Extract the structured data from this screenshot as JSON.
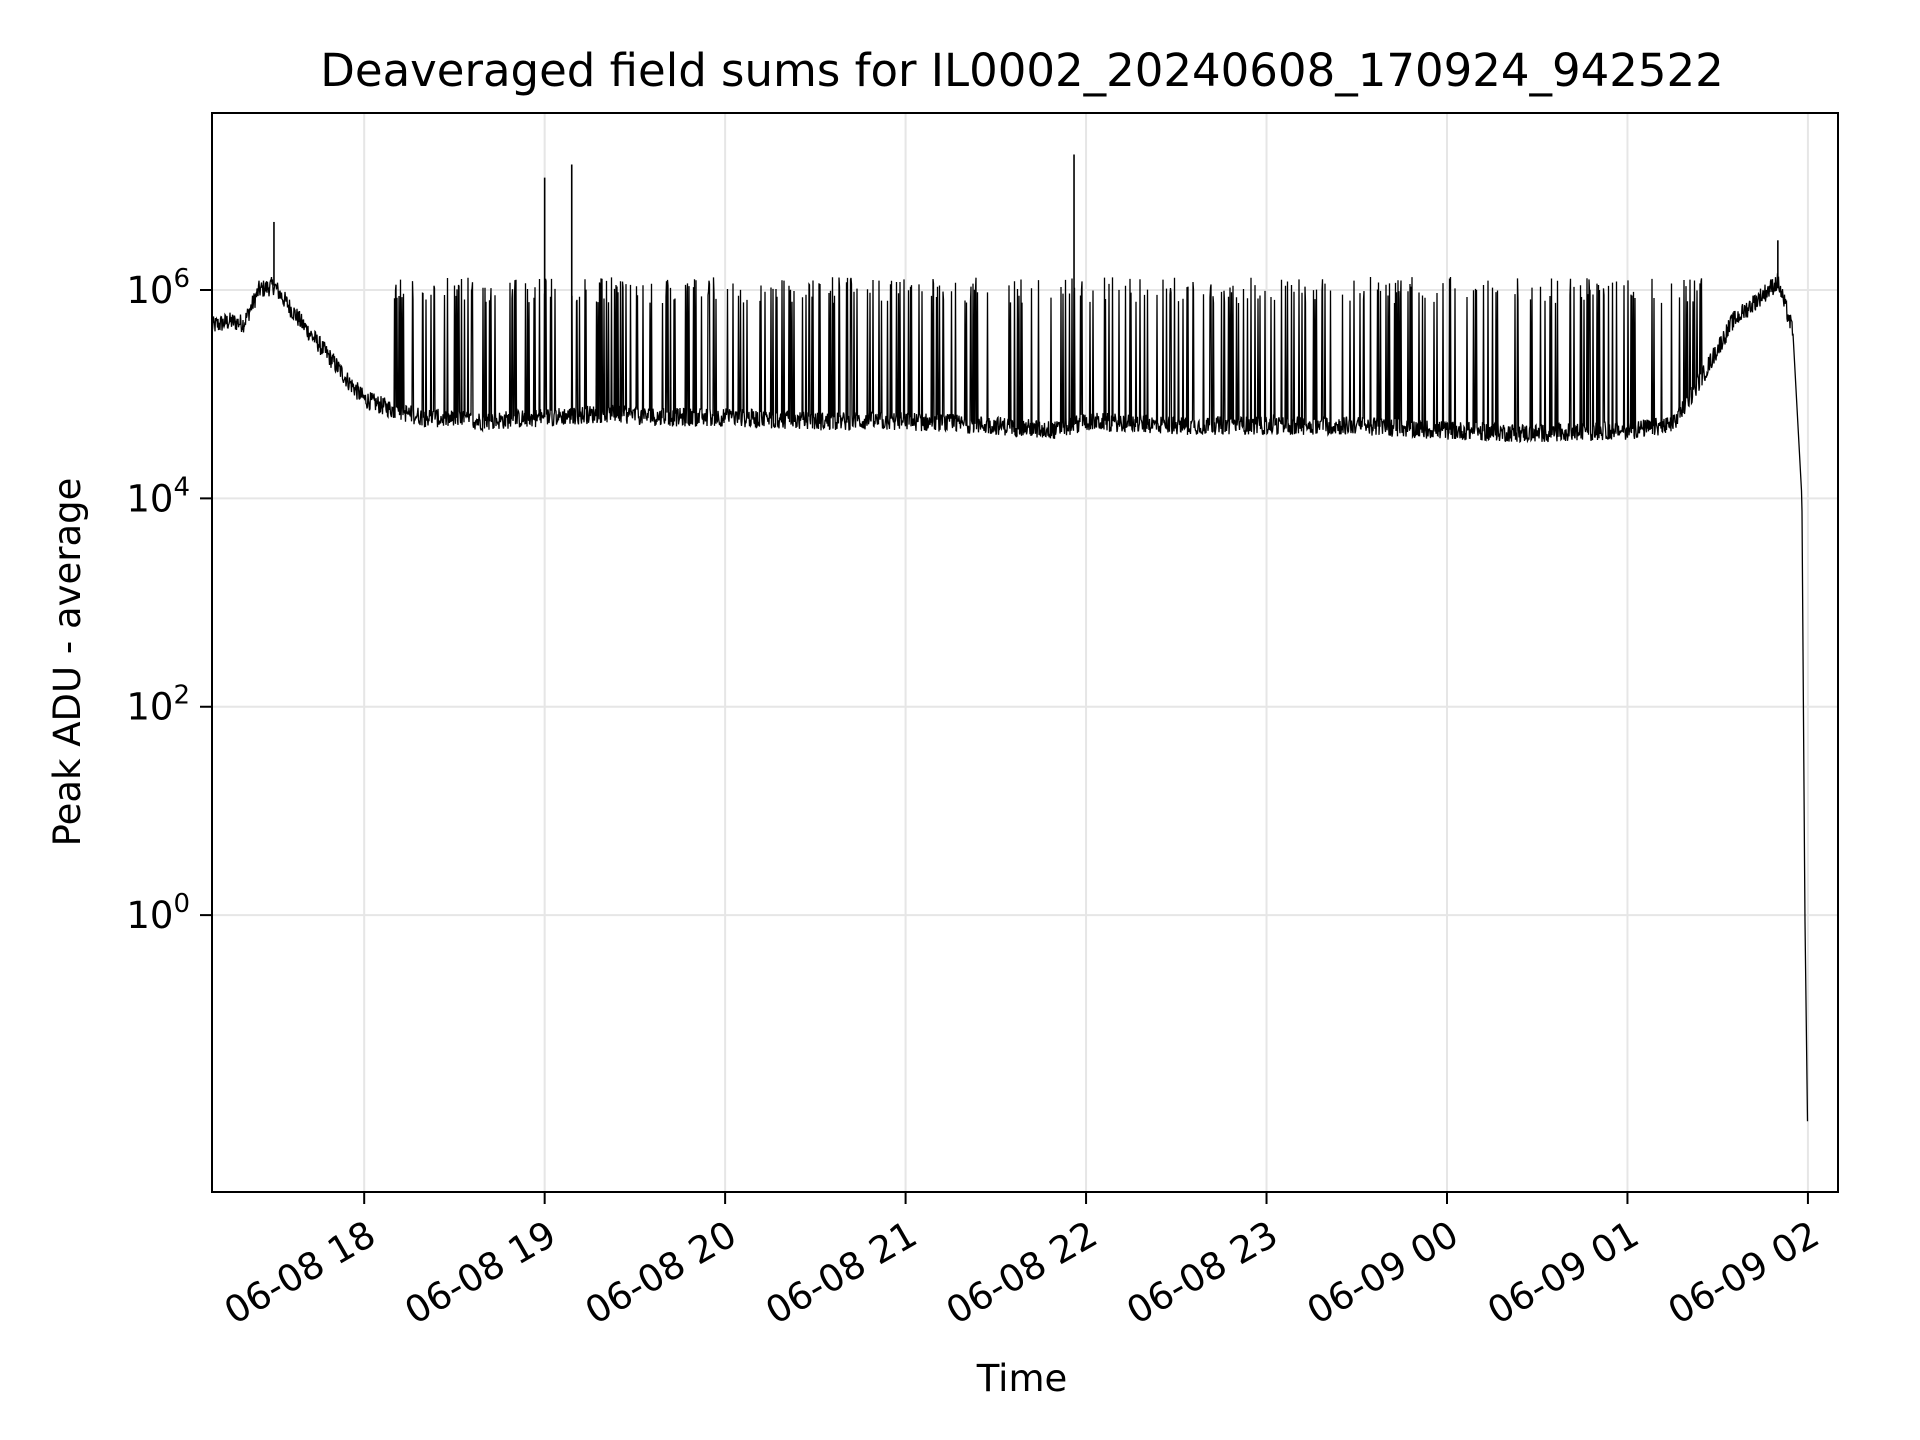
{
  "chart_data": {
    "type": "line",
    "title": "Deaveraged field sums for IL0002_20240608_170924_942522",
    "xlabel": "Time",
    "ylabel": "Peak ADU - average",
    "yscale": "log",
    "grid": true,
    "legend": "none",
    "xlim": [
      "2024-06-08 17:09:24",
      "2024-06-09 02:10:00"
    ],
    "ylim": [
      0.0022,
      50000000
    ],
    "x_ticks": [
      {
        "value": "2024-06-08 18:00",
        "label": "06-08 18"
      },
      {
        "value": "2024-06-08 19:00",
        "label": "06-08 19"
      },
      {
        "value": "2024-06-08 20:00",
        "label": "06-08 20"
      },
      {
        "value": "2024-06-08 21:00",
        "label": "06-08 21"
      },
      {
        "value": "2024-06-08 22:00",
        "label": "06-08 22"
      },
      {
        "value": "2024-06-08 23:00",
        "label": "06-08 23"
      },
      {
        "value": "2024-06-09 00:00",
        "label": "06-09 00"
      },
      {
        "value": "2024-06-09 01:00",
        "label": "06-09 01"
      },
      {
        "value": "2024-06-09 02:00",
        "label": "06-09 02"
      }
    ],
    "y_ticks": [
      {
        "value": 1,
        "base": "10",
        "exp": "0"
      },
      {
        "value": 100,
        "base": "10",
        "exp": "2"
      },
      {
        "value": 10000,
        "base": "10",
        "exp": "4"
      },
      {
        "value": 1000000,
        "base": "10",
        "exp": "6"
      }
    ],
    "series": [
      {
        "color": "#000000",
        "x": [
          "2024-06-08 17:09:24",
          "2024-06-08 17:15",
          "2024-06-08 17:20",
          "2024-06-08 17:25",
          "2024-06-08 17:30",
          "2024-06-08 17:35",
          "2024-06-08 17:40",
          "2024-06-08 17:45",
          "2024-06-08 17:50",
          "2024-06-08 17:55",
          "2024-06-08 18:00",
          "2024-06-08 18:10",
          "2024-06-08 18:20",
          "2024-06-08 18:40",
          "2024-06-08 19:00",
          "2024-06-08 19:20",
          "2024-06-08 19:40",
          "2024-06-08 20:00",
          "2024-06-08 20:30",
          "2024-06-08 21:00",
          "2024-06-08 21:30",
          "2024-06-08 21:50",
          "2024-06-08 22:00",
          "2024-06-08 22:30",
          "2024-06-08 23:00",
          "2024-06-08 23:30",
          "2024-06-09 00:00",
          "2024-06-09 00:30",
          "2024-06-09 01:00",
          "2024-06-09 01:15",
          "2024-06-09 01:25",
          "2024-06-09 01:35",
          "2024-06-09 01:45",
          "2024-06-09 01:50",
          "2024-06-09 01:55",
          "2024-06-09 01:58",
          "2024-06-09 01:59",
          "2024-06-09 02:00"
        ],
        "y": [
          450000,
          500000,
          480000,
          1000000,
          1100000,
          700000,
          450000,
          300000,
          200000,
          130000,
          90000,
          70000,
          60000,
          55000,
          60000,
          65000,
          60000,
          60000,
          55000,
          55000,
          50000,
          45000,
          55000,
          50000,
          50000,
          50000,
          45000,
          42000,
          45000,
          50000,
          150000,
          500000,
          900000,
          1200000,
          400000,
          10000,
          1,
          0.005
        ]
      }
    ],
    "spike_x": [
      "2024-06-08 17:30",
      "2024-06-08 19:00",
      "2024-06-08 19:09",
      "2024-06-08 21:56",
      "2024-06-09 01:50"
    ],
    "spike_y": [
      4500000,
      12000000,
      16000000,
      20000000,
      3000000
    ]
  }
}
